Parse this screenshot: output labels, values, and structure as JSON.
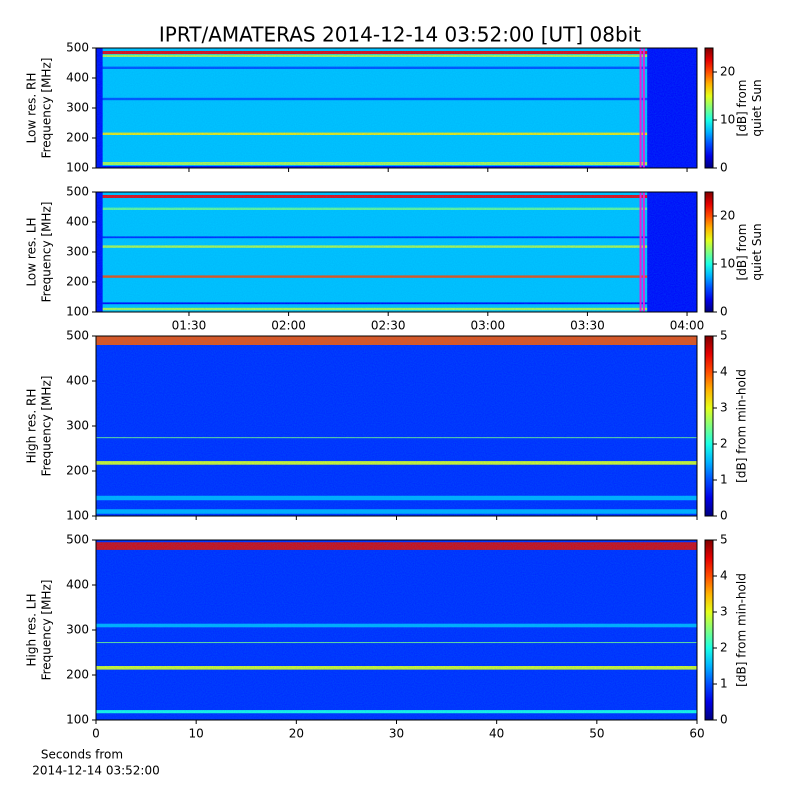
{
  "title": "IPRT/AMATERAS 2014-12-14 03:52:00 [UT]   08bit",
  "xlabel": [
    "Seconds from",
    "2014-12-14 03:52:00"
  ],
  "chart_data": [
    {
      "type": "spectrogram",
      "ylabel": [
        "Low res. RH",
        "Frequency [MHz]"
      ],
      "xlim": [
        "01:02",
        "04:03"
      ],
      "xticks": [
        "01:30",
        "02:00",
        "02:30",
        "03:00",
        "03:30",
        "04:00"
      ],
      "xtick_labels": false,
      "ylim": [
        100,
        500
      ],
      "yticks": [
        100,
        200,
        300,
        400,
        500
      ],
      "clim": [
        0,
        25
      ],
      "cticks": [
        0,
        10,
        20
      ],
      "clabel": [
        "[dB] from",
        "quiet Sun"
      ],
      "background": 8,
      "bands": [
        {
          "from": 480,
          "to": 490,
          "value": 22
        },
        {
          "from": 470,
          "to": 478,
          "value": 14
        },
        {
          "from": 430,
          "to": 438,
          "value": 5
        },
        {
          "from": 326,
          "to": 334,
          "value": 5
        },
        {
          "from": 210,
          "to": 218,
          "value": 16
        },
        {
          "from": 110,
          "to": 120,
          "value": 14
        },
        {
          "from": 100,
          "to": 107,
          "value": 3
        }
      ],
      "time_bands": [
        {
          "from": "01:02",
          "to": "01:04",
          "value": 3
        },
        {
          "from": "03:48",
          "to": "04:03",
          "value": 3
        }
      ],
      "markers": [
        "03:46",
        "03:47"
      ],
      "marker_color": "#dd22dd"
    },
    {
      "type": "spectrogram",
      "ylabel": [
        "Low res. LH",
        "Frequency [MHz]"
      ],
      "xlim": [
        "01:02",
        "04:03"
      ],
      "xticks": [
        "01:30",
        "02:00",
        "02:30",
        "03:00",
        "03:30",
        "04:00"
      ],
      "xtick_labels": true,
      "ylim": [
        100,
        500
      ],
      "yticks": [
        100,
        200,
        300,
        400,
        500
      ],
      "clim": [
        0,
        25
      ],
      "cticks": [
        0,
        10,
        20
      ],
      "clabel": [
        "[dB] from",
        "quiet Sun"
      ],
      "background": 8,
      "bands": [
        {
          "from": 480,
          "to": 490,
          "value": 22
        },
        {
          "from": 440,
          "to": 448,
          "value": 12
        },
        {
          "from": 346,
          "to": 352,
          "value": 4
        },
        {
          "from": 314,
          "to": 322,
          "value": 14
        },
        {
          "from": 214,
          "to": 222,
          "value": 20
        },
        {
          "from": 126,
          "to": 132,
          "value": 3
        },
        {
          "from": 106,
          "to": 114,
          "value": 14
        }
      ],
      "time_bands": [
        {
          "from": "01:02",
          "to": "01:04",
          "value": 3
        },
        {
          "from": "03:48",
          "to": "04:03",
          "value": 3
        }
      ],
      "markers": [
        "03:46",
        "03:47"
      ],
      "marker_color": "#dd22dd"
    },
    {
      "type": "spectrogram",
      "ylabel": [
        "High res. RH",
        "Frequency [MHz]"
      ],
      "xlim": [
        0,
        60
      ],
      "xticks": [
        0,
        10,
        20,
        30,
        40,
        50,
        60
      ],
      "xtick_labels": false,
      "ylim": [
        100,
        500
      ],
      "yticks": [
        100,
        200,
        300,
        400,
        500
      ],
      "clim": [
        0,
        5
      ],
      "cticks": [
        0,
        1,
        2,
        3,
        4,
        5
      ],
      "clabel": [
        "[dB] from min-hold"
      ],
      "background": 0.8,
      "bands": [
        {
          "from": 480,
          "to": 500,
          "value": 4
        },
        {
          "from": 214,
          "to": 222,
          "value": 3
        },
        {
          "from": 273,
          "to": 275,
          "value": 2.5
        },
        {
          "from": 135,
          "to": 145,
          "value": 1.5
        },
        {
          "from": 105,
          "to": 115,
          "value": 1.5
        }
      ],
      "time_bands": [],
      "markers": [],
      "marker_color": "#dd22dd"
    },
    {
      "type": "spectrogram",
      "ylabel": [
        "High res. LH",
        "Frequency [MHz]"
      ],
      "xlim": [
        0,
        60
      ],
      "xticks": [
        0,
        10,
        20,
        30,
        40,
        50,
        60
      ],
      "xtick_labels": true,
      "ylim": [
        100,
        500
      ],
      "yticks": [
        100,
        200,
        300,
        400,
        500
      ],
      "clim": [
        0,
        5
      ],
      "cticks": [
        0,
        1,
        2,
        3,
        4,
        5
      ],
      "clabel": [
        "[dB] from min-hold"
      ],
      "background": 0.8,
      "bands": [
        {
          "from": 478,
          "to": 495,
          "value": 4.5
        },
        {
          "from": 212,
          "to": 220,
          "value": 3
        },
        {
          "from": 271,
          "to": 273,
          "value": 2.5
        },
        {
          "from": 306,
          "to": 314,
          "value": 1.5
        },
        {
          "from": 115,
          "to": 122,
          "value": 2
        }
      ],
      "time_bands": [],
      "markers": [],
      "marker_color": "#dd22dd"
    }
  ]
}
